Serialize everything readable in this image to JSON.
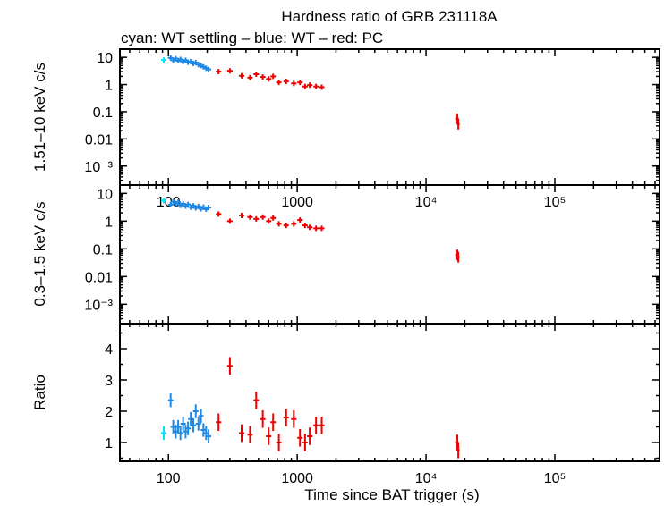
{
  "title": "Hardness ratio of GRB 231118A",
  "subtitle": "cyan: WT settling – blue: WT – red: PC",
  "xlabel": "Time since BAT trigger (s)",
  "colors": {
    "wt_settling": "#00e5ff",
    "wt": "#1e88e5",
    "pc": "#ee0000",
    "axes": "#000000"
  },
  "chart_data": [
    {
      "type": "scatter",
      "panel": "top",
      "ylabel": "1.51–10 keV c/s",
      "yscale": "log",
      "ylim": [
        0.0002,
        20
      ],
      "xscale": "log",
      "xlim": [
        42,
        650000
      ],
      "x_ticks": [
        "100",
        "1000",
        "10⁴",
        "10⁵"
      ],
      "y_ticks": [
        "10",
        "1",
        "0.1",
        "0.01",
        "10⁻³"
      ],
      "series": [
        {
          "name": "WT settling",
          "color": "#00e5ff",
          "points": [
            [
              92,
              8.0
            ]
          ]
        },
        {
          "name": "WT",
          "color": "#1e88e5",
          "points": [
            [
              104,
              9.5
            ],
            [
              109,
              7.8
            ],
            [
              114,
              9.0
            ],
            [
              119,
              7.5
            ],
            [
              124,
              8.4
            ],
            [
              130,
              7.0
            ],
            [
              136,
              7.8
            ],
            [
              142,
              6.6
            ],
            [
              149,
              6.9
            ],
            [
              156,
              6.0
            ],
            [
              163,
              6.4
            ],
            [
              171,
              5.4
            ],
            [
              179,
              5.0
            ],
            [
              187,
              4.5
            ],
            [
              196,
              4.0
            ],
            [
              205,
              3.6
            ]
          ]
        },
        {
          "name": "PC",
          "color": "#ee0000",
          "points": [
            [
              245,
              3.0
            ],
            [
              300,
              3.2
            ],
            [
              370,
              2.1
            ],
            [
              430,
              1.8
            ],
            [
              480,
              2.4
            ],
            [
              540,
              1.9
            ],
            [
              600,
              1.6
            ],
            [
              650,
              2.0
            ],
            [
              720,
              1.2
            ],
            [
              820,
              1.3
            ],
            [
              940,
              1.1
            ],
            [
              1050,
              1.2
            ],
            [
              1150,
              0.85
            ],
            [
              1250,
              0.95
            ],
            [
              1400,
              0.85
            ],
            [
              1550,
              0.8
            ],
            [
              17500,
              0.055
            ],
            [
              17800,
              0.035
            ]
          ]
        }
      ]
    },
    {
      "type": "scatter",
      "panel": "middle",
      "ylabel": "0.3–1.5 keV c/s",
      "yscale": "log",
      "ylim": [
        0.0002,
        20
      ],
      "xscale": "log",
      "xlim": [
        42,
        650000
      ],
      "y_ticks": [
        "10",
        "1",
        "0.1",
        "0.01",
        "10⁻³"
      ],
      "series": [
        {
          "name": "WT settling",
          "color": "#00e5ff",
          "points": [
            [
              92,
              5.5
            ]
          ]
        },
        {
          "name": "WT",
          "color": "#1e88e5",
          "points": [
            [
              104,
              3.9
            ],
            [
              109,
              5.0
            ],
            [
              114,
              4.3
            ],
            [
              119,
              4.8
            ],
            [
              124,
              3.7
            ],
            [
              130,
              4.2
            ],
            [
              136,
              3.5
            ],
            [
              142,
              4.0
            ],
            [
              149,
              3.2
            ],
            [
              156,
              3.6
            ],
            [
              163,
              3.0
            ],
            [
              171,
              3.4
            ],
            [
              179,
              2.8
            ],
            [
              187,
              3.2
            ],
            [
              196,
              2.7
            ],
            [
              205,
              3.1
            ]
          ]
        },
        {
          "name": "PC",
          "color": "#ee0000",
          "points": [
            [
              245,
              1.8
            ],
            [
              300,
              1.0
            ],
            [
              370,
              1.6
            ],
            [
              430,
              1.4
            ],
            [
              480,
              1.2
            ],
            [
              540,
              1.4
            ],
            [
              600,
              1.0
            ],
            [
              650,
              1.3
            ],
            [
              720,
              0.8
            ],
            [
              820,
              0.7
            ],
            [
              940,
              0.8
            ],
            [
              1050,
              1.1
            ],
            [
              1150,
              0.7
            ],
            [
              1250,
              0.6
            ],
            [
              1400,
              0.55
            ],
            [
              1550,
              0.55
            ],
            [
              17500,
              0.06
            ],
            [
              17800,
              0.05
            ]
          ]
        }
      ]
    },
    {
      "type": "scatter",
      "panel": "bottom",
      "ylabel": "Ratio",
      "yscale": "linear",
      "ylim": [
        0.4,
        4.8
      ],
      "xscale": "log",
      "xlim": [
        42,
        650000
      ],
      "x_ticks": [
        "100",
        "1000",
        "10⁴",
        "10⁵"
      ],
      "y_ticks": [
        "1",
        "2",
        "3",
        "4"
      ],
      "series": [
        {
          "name": "WT settling",
          "color": "#00e5ff",
          "points": [
            [
              92,
              1.3
            ]
          ]
        },
        {
          "name": "WT",
          "color": "#1e88e5",
          "points": [
            [
              104,
              2.35
            ],
            [
              109,
              1.5
            ],
            [
              114,
              1.35
            ],
            [
              119,
              1.5
            ],
            [
              124,
              1.3
            ],
            [
              130,
              1.6
            ],
            [
              136,
              1.35
            ],
            [
              142,
              1.45
            ],
            [
              149,
              1.75
            ],
            [
              156,
              1.55
            ],
            [
              163,
              2.0
            ],
            [
              171,
              1.6
            ],
            [
              179,
              1.85
            ],
            [
              187,
              1.4
            ],
            [
              196,
              1.3
            ],
            [
              205,
              1.2
            ]
          ]
        },
        {
          "name": "PC",
          "color": "#ee0000",
          "points": [
            [
              245,
              1.65
            ],
            [
              300,
              3.45
            ],
            [
              370,
              1.3
            ],
            [
              430,
              1.25
            ],
            [
              480,
              2.35
            ],
            [
              540,
              1.75
            ],
            [
              600,
              1.2
            ],
            [
              650,
              1.65
            ],
            [
              720,
              1.0
            ],
            [
              820,
              1.8
            ],
            [
              940,
              1.75
            ],
            [
              1050,
              1.15
            ],
            [
              1150,
              1.0
            ],
            [
              1250,
              1.2
            ],
            [
              1400,
              1.55
            ],
            [
              1550,
              1.55
            ],
            [
              17500,
              1.0
            ],
            [
              17800,
              0.75
            ]
          ]
        }
      ]
    }
  ]
}
